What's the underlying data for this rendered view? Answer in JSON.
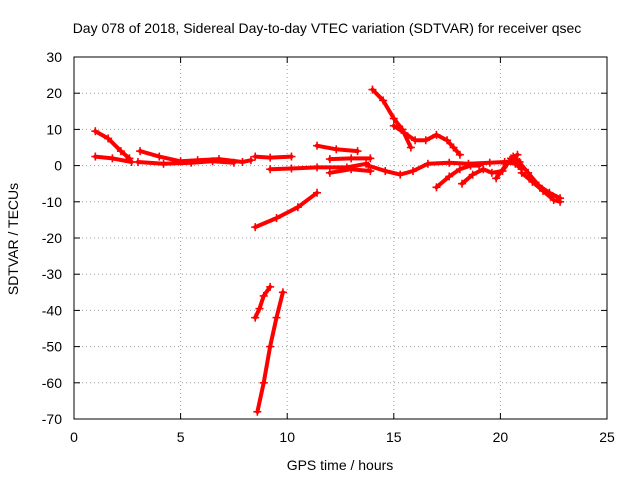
{
  "chart_data": {
    "type": "scatter",
    "title": "Day 078 of 2018, Sidereal Day-to-day VTEC variation (SDTVAR) for receiver qsec",
    "xlabel": "GPS time / hours",
    "ylabel": "SDTVAR / TECUs",
    "xlim": [
      0,
      25
    ],
    "ylim": [
      -70,
      30
    ],
    "xticks": [
      0,
      5,
      10,
      15,
      20,
      25
    ],
    "yticks": [
      -70,
      -60,
      -50,
      -40,
      -30,
      -20,
      -10,
      0,
      10,
      20,
      30
    ],
    "grid": true,
    "marker": "plus",
    "color": "#ff0000",
    "segments": [
      {
        "x": [
          1.0,
          1.6,
          2.2,
          2.6
        ],
        "y": [
          9.5,
          7.5,
          4.0,
          2.0
        ]
      },
      {
        "x": [
          1.0,
          1.8,
          2.7
        ],
        "y": [
          2.5,
          2.0,
          1.0
        ]
      },
      {
        "x": [
          3.1,
          4.0,
          5.0,
          5.8,
          6.8,
          7.9,
          8.3
        ],
        "y": [
          4.0,
          2.5,
          1.2,
          1.5,
          1.8,
          1.0,
          1.5
        ]
      },
      {
        "x": [
          3.0,
          4.2,
          5.5,
          6.5,
          7.5
        ],
        "y": [
          1.0,
          0.5,
          0.8,
          1.2,
          0.8
        ]
      },
      {
        "x": [
          8.5,
          9.2,
          10.2
        ],
        "y": [
          2.5,
          2.2,
          2.5
        ]
      },
      {
        "x": [
          9.2,
          10.2,
          11.4,
          12.8,
          13.7
        ],
        "y": [
          -1.0,
          -0.8,
          -0.5,
          -0.5,
          0.5
        ]
      },
      {
        "x": [
          11.4,
          12.3,
          13.3
        ],
        "y": [
          5.5,
          4.5,
          4.0
        ]
      },
      {
        "x": [
          12.0,
          13.0,
          13.9
        ],
        "y": [
          1.8,
          2.0,
          2.0
        ]
      },
      {
        "x": [
          12.0,
          13.0,
          13.9
        ],
        "y": [
          -2.0,
          -1.0,
          -1.5
        ]
      },
      {
        "x": [
          14.0,
          14.5,
          15.0,
          15.4,
          15.8
        ],
        "y": [
          21.0,
          18.0,
          13.0,
          10.0,
          5.0
        ]
      },
      {
        "x": [
          15.0,
          15.5,
          16.0,
          16.5,
          17.0,
          17.5,
          17.8,
          18.1
        ],
        "y": [
          11.0,
          9.0,
          7.0,
          7.0,
          8.5,
          7.0,
          5.0,
          3.0
        ]
      },
      {
        "x": [
          13.8,
          14.6,
          15.3,
          15.9,
          16.6,
          17.6,
          18.5,
          19.5,
          20.2,
          20.7,
          21.0
        ],
        "y": [
          0.0,
          -1.5,
          -2.5,
          -1.5,
          0.5,
          0.8,
          0.5,
          0.8,
          1.0,
          0.5,
          -1.0
        ]
      },
      {
        "x": [
          17.0,
          17.6,
          18.1,
          18.6,
          19.0
        ],
        "y": [
          -6.0,
          -3.0,
          -1.0,
          0.0,
          0.0
        ]
      },
      {
        "x": [
          18.2,
          18.7,
          19.2,
          19.6,
          20.1,
          20.5,
          20.8
        ],
        "y": [
          -5.0,
          -2.5,
          -1.0,
          -2.0,
          -1.5,
          2.0,
          3.0
        ]
      },
      {
        "x": [
          19.8,
          20.3,
          20.6,
          20.9
        ],
        "y": [
          -3.5,
          0.5,
          2.5,
          1.0
        ]
      },
      {
        "x": [
          20.2,
          20.8,
          21.3,
          21.8,
          22.3,
          22.8
        ],
        "y": [
          0.5,
          1.5,
          -2.0,
          -5.5,
          -7.5,
          -9.0
        ]
      },
      {
        "x": [
          21.0,
          21.5,
          22.0,
          22.5,
          22.8
        ],
        "y": [
          -2.0,
          -4.5,
          -7.0,
          -9.5,
          -10.0
        ]
      },
      {
        "x": [
          8.5,
          9.5,
          10.5,
          11.4
        ],
        "y": [
          -17.0,
          -14.5,
          -11.5,
          -7.5
        ]
      },
      {
        "x": [
          8.5,
          8.7,
          8.9,
          9.2
        ],
        "y": [
          -42.0,
          -39.5,
          -36.0,
          -33.5
        ]
      },
      {
        "x": [
          8.6,
          8.9,
          9.2,
          9.5,
          9.8
        ],
        "y": [
          -68.0,
          -60.0,
          -50.0,
          -42.0,
          -35.0
        ]
      }
    ]
  }
}
